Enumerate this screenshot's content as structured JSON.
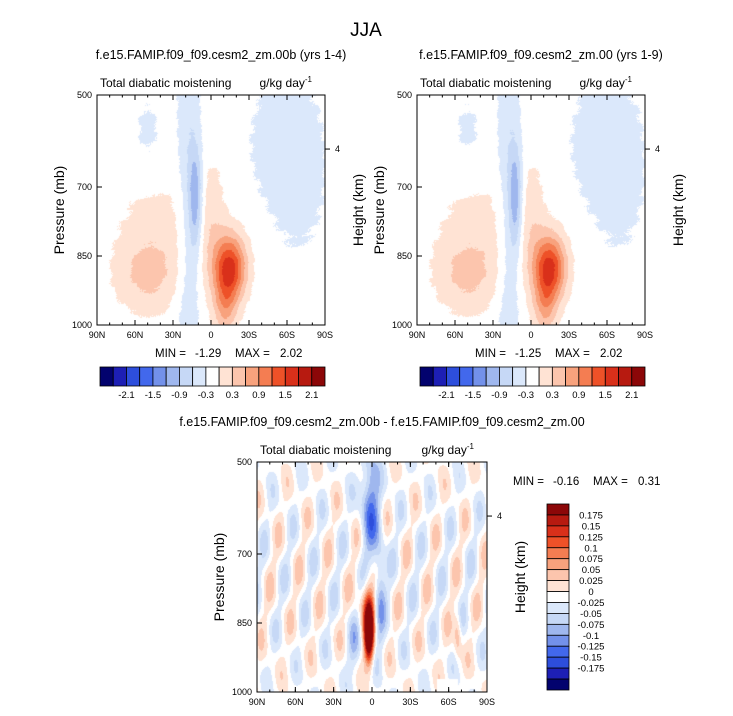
{
  "figure_title": "JJA",
  "colors": {
    "full_levels": [
      "#02026e",
      "#1d1fb5",
      "#2d4edc",
      "#4268ec",
      "#7391ea",
      "#9fb7ee",
      "#c6d8f6",
      "#dbe8fb",
      "#ffffff",
      "#ffe3d4",
      "#fcc5ad",
      "#f8a27d",
      "#f47d52",
      "#ee5128",
      "#d9301a",
      "#b71a10",
      "#8c0708"
    ],
    "diff_levels": [
      "#02026e",
      "#1d1fb5",
      "#2d4edc",
      "#4268ec",
      "#7391ea",
      "#9fb7ee",
      "#c6d8f6",
      "#dbe8fb",
      "#ffffff",
      "#ffe3d4",
      "#fcc5ad",
      "#f8a27d",
      "#f47d52",
      "#ee5128",
      "#d9301a",
      "#b71a10",
      "#8c0708"
    ]
  },
  "chart_data": [
    {
      "type": "heatmap",
      "name": "panel1",
      "title": "f.e15.FAMIP.f09_f09.cesm2_zm.00b (yrs 1-4)",
      "left_label": "Total diabatic moistening",
      "units": "g/kg day",
      "units_exp": "-1",
      "xlabel": "",
      "ylabel": "Pressure (mb)",
      "ylabel_right": "Height (km)",
      "x_ticks": [
        "90N",
        "60N",
        "30N",
        "0",
        "30S",
        "60S",
        "90S"
      ],
      "y_ticks": [
        "500",
        "700",
        "850",
        "1000"
      ],
      "right_ticks": [
        "4"
      ],
      "min_label": "MIN =",
      "min": "-1.29",
      "max_label": "MAX =",
      "max": "2.02",
      "colorbar_labels": [
        "-2.1",
        "-1.5",
        "-0.9",
        "-0.3",
        "0.3",
        "0.9",
        "1.5",
        "2.1"
      ]
    },
    {
      "type": "heatmap",
      "name": "panel2",
      "title": "f.e15.FAMIP.f09_f09.cesm2_zm.00 (yrs 1-9)",
      "left_label": "Total diabatic moistening",
      "units": "g/kg day",
      "units_exp": "-1",
      "xlabel": "",
      "ylabel": "Pressure (mb)",
      "ylabel_right": "Height (km)",
      "x_ticks": [
        "90N",
        "60N",
        "30N",
        "0",
        "30S",
        "60S",
        "90S"
      ],
      "y_ticks": [
        "500",
        "700",
        "850",
        "1000"
      ],
      "right_ticks": [
        "4"
      ],
      "min_label": "MIN =",
      "min": "-1.25",
      "max_label": "MAX =",
      "max": "2.02",
      "colorbar_labels": [
        "-2.1",
        "-1.5",
        "-0.9",
        "-0.3",
        "0.3",
        "0.9",
        "1.5",
        "2.1"
      ]
    },
    {
      "type": "heatmap",
      "name": "panel3",
      "title": "f.e15.FAMIP.f09_f09.cesm2_zm.00b - f.e15.FAMIP.f09_f09.cesm2_zm.00",
      "left_label": "Total diabatic moistening",
      "units": "g/kg day",
      "units_exp": "-1",
      "xlabel": "",
      "ylabel": "Pressure (mb)",
      "ylabel_right": "Height (km)",
      "x_ticks": [
        "90N",
        "60N",
        "30N",
        "0",
        "30S",
        "60S",
        "90S"
      ],
      "y_ticks": [
        "500",
        "700",
        "850",
        "1000"
      ],
      "right_ticks": [
        "4"
      ],
      "min_label": "MIN =",
      "min": "-0.16",
      "max_label": "MAX =",
      "max": "0.31",
      "colorbar_labels": [
        "0.175",
        "0.15",
        "0.125",
        "0.1",
        "0.075",
        "0.05",
        "0.025",
        "0",
        "-0.025",
        "-0.05",
        "-0.075",
        "-0.1",
        "-0.125",
        "-0.15",
        "-0.175"
      ]
    }
  ]
}
